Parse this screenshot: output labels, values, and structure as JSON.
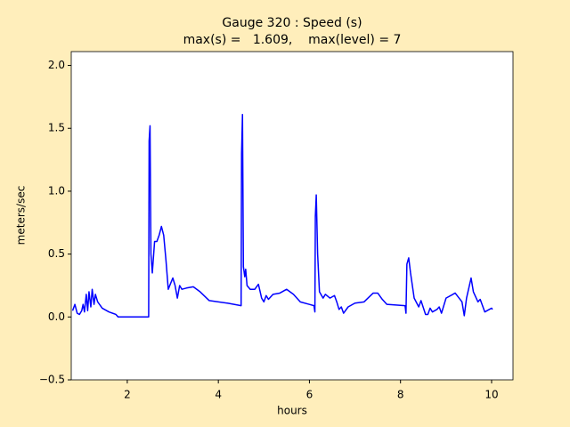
{
  "chart_data": {
    "type": "line",
    "title": "Gauge 320 : Speed (s)",
    "subtitle": "max(s) =   1.609,    max(level) = 7",
    "x_label": "hours",
    "y_label": "meters/sec",
    "xlim": [
      0.77,
      10.47
    ],
    "ylim": [
      -0.5,
      2.11
    ],
    "xticks": [
      2,
      4,
      6,
      8,
      10
    ],
    "yticks": [
      {
        "value": -0.5,
        "label": "−0.5"
      },
      {
        "value": 0,
        "label": "0.0"
      },
      {
        "value": 0.5,
        "label": "0.5"
      },
      {
        "value": 1,
        "label": "1.0"
      },
      {
        "value": 1.5,
        "label": "1.5"
      },
      {
        "value": 2,
        "label": "2.0"
      }
    ],
    "series": [
      {
        "name": "speed",
        "color": "#0000ff",
        "x": [
          0.8,
          0.85,
          0.9,
          0.95,
          1.0,
          1.03,
          1.06,
          1.1,
          1.13,
          1.16,
          1.2,
          1.23,
          1.27,
          1.3,
          1.35,
          1.45,
          1.6,
          1.75,
          1.8,
          2.47,
          2.48,
          2.5,
          2.52,
          2.55,
          2.6,
          2.65,
          2.7,
          2.75,
          2.8,
          2.85,
          2.9,
          3.0,
          3.05,
          3.1,
          3.15,
          3.2,
          3.3,
          3.45,
          3.6,
          3.8,
          4.2,
          4.5,
          4.51,
          4.53,
          4.55,
          4.58,
          4.6,
          4.63,
          4.7,
          4.8,
          4.88,
          4.95,
          5.0,
          5.05,
          5.1,
          5.2,
          5.35,
          5.5,
          5.65,
          5.8,
          6.0,
          6.1,
          6.12,
          6.13,
          6.15,
          6.18,
          6.22,
          6.3,
          6.35,
          6.45,
          6.55,
          6.6,
          6.65,
          6.7,
          6.75,
          6.85,
          7.0,
          7.2,
          7.4,
          7.5,
          7.6,
          7.7,
          8.1,
          8.12,
          8.14,
          8.18,
          8.22,
          8.3,
          8.4,
          8.45,
          8.55,
          8.6,
          8.65,
          8.7,
          8.8,
          8.85,
          8.9,
          9.0,
          9.2,
          9.35,
          9.4,
          9.45,
          9.55,
          9.6,
          9.7,
          9.75,
          9.85,
          9.95,
          10.0,
          10.02
        ],
        "values": [
          0.05,
          0.1,
          0.03,
          0.02,
          0.05,
          0.1,
          0.04,
          0.18,
          0.05,
          0.2,
          0.08,
          0.22,
          0.1,
          0.18,
          0.12,
          0.07,
          0.04,
          0.02,
          0.0,
          0.0,
          1.4,
          1.52,
          0.5,
          0.35,
          0.6,
          0.6,
          0.65,
          0.72,
          0.65,
          0.45,
          0.22,
          0.31,
          0.25,
          0.15,
          0.25,
          0.22,
          0.23,
          0.24,
          0.2,
          0.13,
          0.11,
          0.09,
          1.3,
          1.61,
          0.4,
          0.32,
          0.38,
          0.25,
          0.22,
          0.22,
          0.26,
          0.15,
          0.12,
          0.17,
          0.14,
          0.18,
          0.19,
          0.22,
          0.18,
          0.12,
          0.1,
          0.09,
          0.04,
          0.8,
          0.97,
          0.5,
          0.2,
          0.15,
          0.18,
          0.15,
          0.17,
          0.12,
          0.06,
          0.08,
          0.03,
          0.08,
          0.11,
          0.12,
          0.19,
          0.19,
          0.14,
          0.1,
          0.09,
          0.03,
          0.42,
          0.47,
          0.35,
          0.15,
          0.08,
          0.13,
          0.02,
          0.02,
          0.07,
          0.04,
          0.06,
          0.08,
          0.03,
          0.15,
          0.19,
          0.12,
          0.01,
          0.15,
          0.31,
          0.2,
          0.12,
          0.14,
          0.04,
          0.06,
          0.07,
          0.06
        ]
      }
    ]
  }
}
